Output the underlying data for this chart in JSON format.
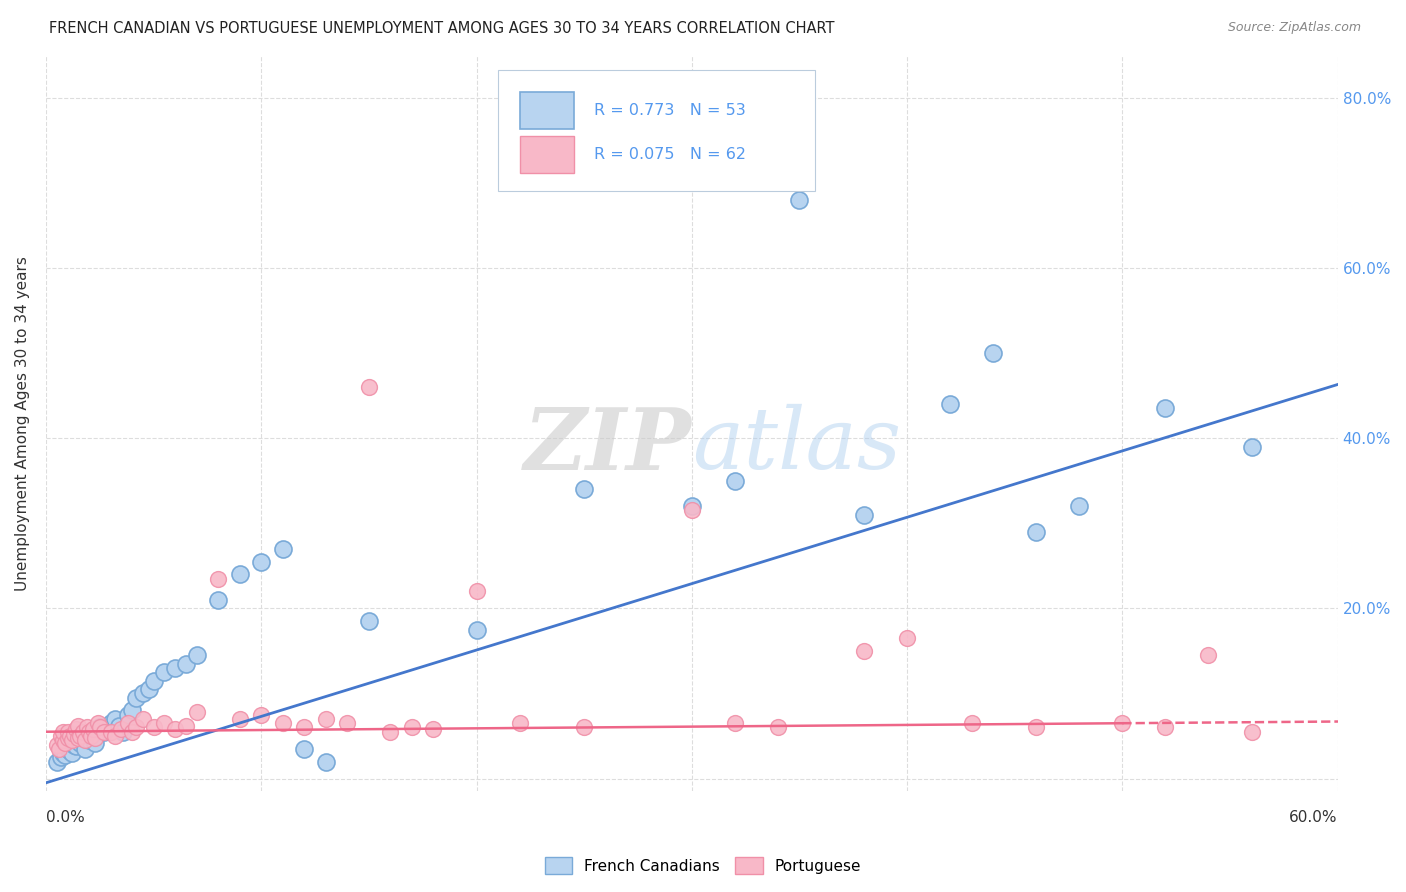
{
  "title": "FRENCH CANADIAN VS PORTUGUESE UNEMPLOYMENT AMONG AGES 30 TO 34 YEARS CORRELATION CHART",
  "source": "Source: ZipAtlas.com",
  "ylabel": "Unemployment Among Ages 30 to 34 years",
  "xlim": [
    0.0,
    0.6
  ],
  "ylim": [
    -0.015,
    0.85
  ],
  "french_color_fill": "#B8D4F0",
  "french_color_edge": "#7AAAD8",
  "portuguese_color_fill": "#F8B8C8",
  "portuguese_color_edge": "#F090A8",
  "line_french": "#4477CC",
  "line_portuguese": "#EE6688",
  "watermark_color": "#C8D8E8",
  "background": "#FFFFFF",
  "text_color": "#333333",
  "axis_color": "#5599EE",
  "grid_color": "#DDDDDD",
  "french_R": "0.773",
  "french_N": "53",
  "portuguese_R": "0.075",
  "portuguese_N": "62",
  "french_slope": 0.78,
  "french_intercept": -0.005,
  "portuguese_slope": 0.02,
  "portuguese_intercept": 0.055,
  "french_x": [
    0.005,
    0.007,
    0.008,
    0.009,
    0.01,
    0.011,
    0.012,
    0.013,
    0.014,
    0.015,
    0.016,
    0.017,
    0.018,
    0.019,
    0.02,
    0.021,
    0.022,
    0.023,
    0.025,
    0.027,
    0.03,
    0.032,
    0.034,
    0.036,
    0.038,
    0.04,
    0.042,
    0.045,
    0.048,
    0.05,
    0.055,
    0.06,
    0.065,
    0.07,
    0.08,
    0.09,
    0.1,
    0.11,
    0.12,
    0.13,
    0.15,
    0.2,
    0.25,
    0.3,
    0.32,
    0.35,
    0.38,
    0.42,
    0.44,
    0.46,
    0.48,
    0.52,
    0.56
  ],
  "french_y": [
    0.02,
    0.025,
    0.03,
    0.028,
    0.035,
    0.032,
    0.03,
    0.04,
    0.038,
    0.045,
    0.042,
    0.048,
    0.035,
    0.05,
    0.045,
    0.055,
    0.052,
    0.042,
    0.06,
    0.055,
    0.065,
    0.07,
    0.062,
    0.055,
    0.075,
    0.08,
    0.095,
    0.1,
    0.105,
    0.115,
    0.125,
    0.13,
    0.135,
    0.145,
    0.21,
    0.24,
    0.255,
    0.27,
    0.035,
    0.02,
    0.185,
    0.175,
    0.34,
    0.32,
    0.35,
    0.68,
    0.31,
    0.44,
    0.5,
    0.29,
    0.32,
    0.435,
    0.39
  ],
  "portuguese_x": [
    0.005,
    0.006,
    0.007,
    0.008,
    0.008,
    0.009,
    0.01,
    0.01,
    0.011,
    0.012,
    0.013,
    0.014,
    0.015,
    0.015,
    0.016,
    0.017,
    0.018,
    0.019,
    0.02,
    0.021,
    0.022,
    0.023,
    0.024,
    0.025,
    0.027,
    0.03,
    0.032,
    0.035,
    0.038,
    0.04,
    0.042,
    0.045,
    0.05,
    0.055,
    0.06,
    0.065,
    0.07,
    0.08,
    0.09,
    0.1,
    0.11,
    0.12,
    0.13,
    0.14,
    0.15,
    0.16,
    0.17,
    0.18,
    0.2,
    0.22,
    0.25,
    0.3,
    0.32,
    0.34,
    0.38,
    0.4,
    0.43,
    0.46,
    0.5,
    0.52,
    0.54,
    0.56
  ],
  "portuguese_y": [
    0.04,
    0.035,
    0.05,
    0.045,
    0.055,
    0.042,
    0.048,
    0.055,
    0.05,
    0.045,
    0.052,
    0.058,
    0.048,
    0.062,
    0.05,
    0.055,
    0.045,
    0.06,
    0.055,
    0.05,
    0.058,
    0.048,
    0.065,
    0.06,
    0.055,
    0.055,
    0.05,
    0.058,
    0.065,
    0.055,
    0.06,
    0.07,
    0.06,
    0.065,
    0.058,
    0.062,
    0.078,
    0.235,
    0.07,
    0.075,
    0.065,
    0.06,
    0.07,
    0.065,
    0.46,
    0.055,
    0.06,
    0.058,
    0.22,
    0.065,
    0.06,
    0.315,
    0.065,
    0.06,
    0.15,
    0.165,
    0.065,
    0.06,
    0.065,
    0.06,
    0.145,
    0.055
  ]
}
